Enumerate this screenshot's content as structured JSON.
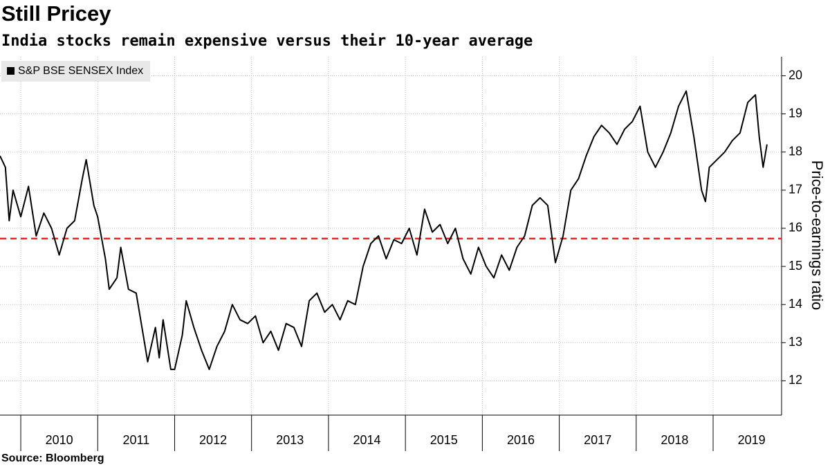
{
  "chart_data": {
    "type": "line",
    "title": "Still Pricey",
    "subtitle": "India stocks remain expensive versus their 10-year average",
    "source": "Source: Bloomberg",
    "y_axis_label": "Price-to-earnings ratio",
    "xlim": [
      2009.73,
      2019.89
    ],
    "xticks": [
      2010,
      2011,
      2012,
      2013,
      2014,
      2015,
      2016,
      2017,
      2018,
      2019
    ],
    "ylim": [
      11.1,
      20.5
    ],
    "yticks": [
      12,
      13,
      14,
      15,
      16,
      17,
      18,
      19,
      20
    ],
    "grid": true,
    "average_line": {
      "value": 15.73,
      "color": "#e8202a"
    },
    "legend": "top-left",
    "series": [
      {
        "name": "S&P BSE SENSEX Index",
        "color": "#000000",
        "x": [
          2009.73,
          2009.8,
          2009.85,
          2009.9,
          2010.0,
          2010.1,
          2010.2,
          2010.3,
          2010.4,
          2010.5,
          2010.6,
          2010.7,
          2010.8,
          2010.85,
          2010.95,
          2011.0,
          2011.1,
          2011.15,
          2011.25,
          2011.3,
          2011.4,
          2011.5,
          2011.6,
          2011.65,
          2011.75,
          2011.8,
          2011.85,
          2011.95,
          2012.0,
          2012.1,
          2012.15,
          2012.25,
          2012.35,
          2012.45,
          2012.55,
          2012.65,
          2012.75,
          2012.85,
          2012.95,
          2013.05,
          2013.15,
          2013.25,
          2013.35,
          2013.45,
          2013.55,
          2013.65,
          2013.75,
          2013.85,
          2013.95,
          2014.05,
          2014.15,
          2014.25,
          2014.35,
          2014.45,
          2014.55,
          2014.65,
          2014.75,
          2014.85,
          2014.95,
          2015.05,
          2015.15,
          2015.25,
          2015.35,
          2015.45,
          2015.55,
          2015.65,
          2015.75,
          2015.85,
          2015.95,
          2016.05,
          2016.15,
          2016.25,
          2016.35,
          2016.45,
          2016.55,
          2016.65,
          2016.75,
          2016.85,
          2016.95,
          2017.05,
          2017.15,
          2017.25,
          2017.35,
          2017.45,
          2017.55,
          2017.65,
          2017.75,
          2017.85,
          2017.95,
          2018.05,
          2018.15,
          2018.25,
          2018.35,
          2018.45,
          2018.55,
          2018.65,
          2018.75,
          2018.85,
          2018.9,
          2018.95,
          2019.05,
          2019.15,
          2019.25,
          2019.35,
          2019.45,
          2019.55,
          2019.6,
          2019.65,
          2019.7
        ],
        "values": [
          17.9,
          17.6,
          16.2,
          17.0,
          16.3,
          17.1,
          15.8,
          16.4,
          16.0,
          15.3,
          16.0,
          16.2,
          17.3,
          17.8,
          16.6,
          16.3,
          15.2,
          14.4,
          14.7,
          15.5,
          14.4,
          14.3,
          13.1,
          12.5,
          13.4,
          12.6,
          13.6,
          12.3,
          12.3,
          13.2,
          14.1,
          13.4,
          12.8,
          12.3,
          12.9,
          13.3,
          14.0,
          13.6,
          13.5,
          13.7,
          13.0,
          13.3,
          12.8,
          13.5,
          13.4,
          12.9,
          14.1,
          14.3,
          13.8,
          14.0,
          13.6,
          14.1,
          14.0,
          15.0,
          15.6,
          15.8,
          15.2,
          15.7,
          15.6,
          16.0,
          15.3,
          16.5,
          15.9,
          16.1,
          15.6,
          16.0,
          15.2,
          14.8,
          15.5,
          15.0,
          14.7,
          15.3,
          14.9,
          15.5,
          15.8,
          16.6,
          16.8,
          16.6,
          15.1,
          15.8,
          17.0,
          17.3,
          17.9,
          18.4,
          18.7,
          18.5,
          18.2,
          18.6,
          18.8,
          19.2,
          18.0,
          17.6,
          18.0,
          18.5,
          19.2,
          19.6,
          18.4,
          17.0,
          16.7,
          17.6,
          17.8,
          18.0,
          18.3,
          18.5,
          19.3,
          19.5,
          18.4,
          17.6,
          18.2
        ]
      }
    ]
  }
}
